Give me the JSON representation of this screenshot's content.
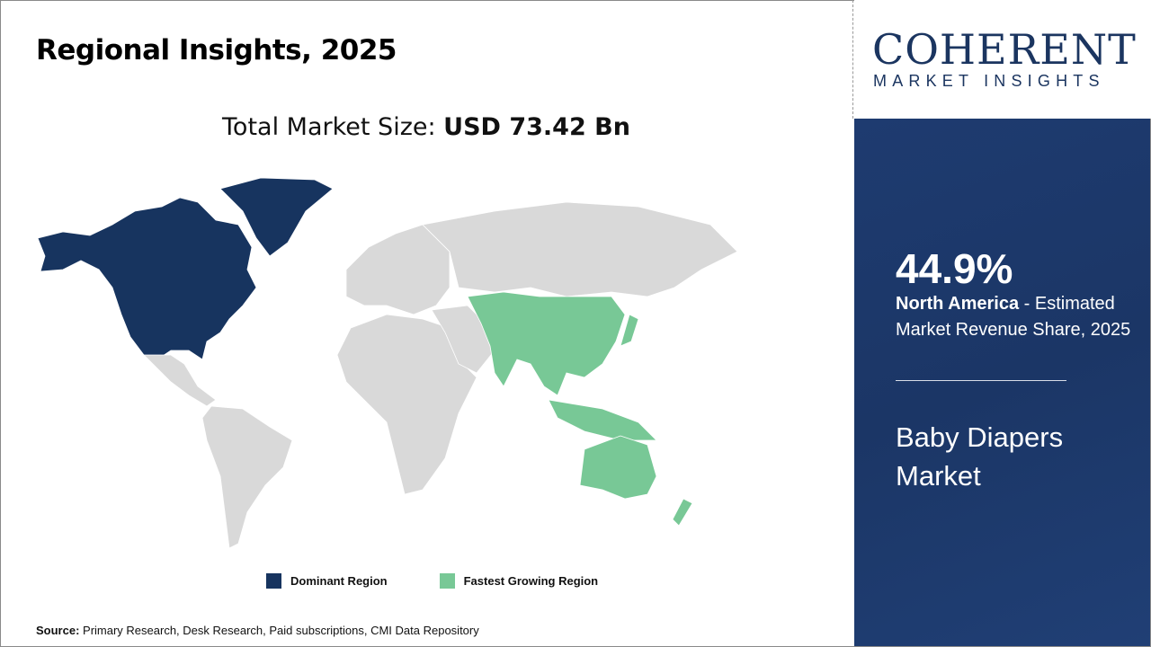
{
  "header": {
    "title": "Regional Insights, 2025"
  },
  "total_market": {
    "label": "Total Market Size:",
    "value": "USD 73.42 Bn"
  },
  "map": {
    "dominant_region": "North America",
    "fastest_growing_region": "Asia Pacific",
    "colors": {
      "dominant": "#17345f",
      "fastest": "#78c896",
      "other": "#d9d9d9"
    }
  },
  "legend": [
    {
      "label": "Dominant Region",
      "color": "#17345f"
    },
    {
      "label": "Fastest Growing Region",
      "color": "#78c896"
    }
  ],
  "source": {
    "label": "Source:",
    "text": "Primary Research, Desk Research, Paid subscriptions, CMI Data Repository"
  },
  "logo": {
    "name": "COHERENT",
    "tagline": "MARKET INSIGHTS"
  },
  "panel": {
    "share": "44.9%",
    "region": "North America",
    "description": " - Estimated Market Revenue Share, 2025",
    "market_name": "Baby Diapers Market",
    "background": "#1e3a6e"
  }
}
